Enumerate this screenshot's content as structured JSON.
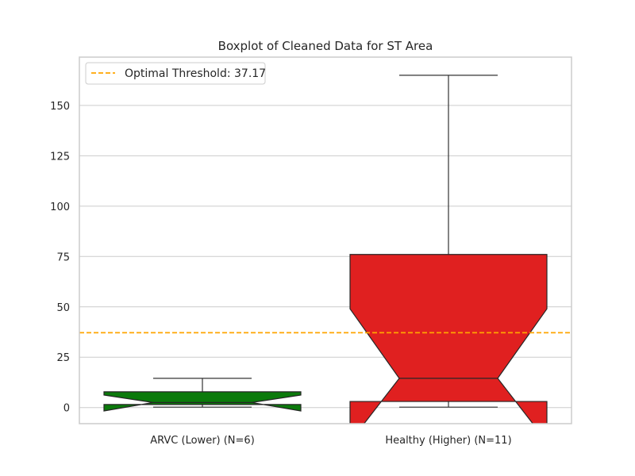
{
  "chart_data": {
    "type": "boxplot",
    "title": "Boxplot of Cleaned Data for ST Area",
    "xlabel": "",
    "ylabel": "",
    "ylim": [
      -8,
      174
    ],
    "yticks": [
      0,
      25,
      50,
      75,
      100,
      125,
      150
    ],
    "grid": true,
    "notched": true,
    "categories": [
      "ARVC (Lower) (N=6)",
      "Healthy (Higher) (N=11)"
    ],
    "boxes": [
      {
        "category": "ARVC (Lower) (N=6)",
        "color": "#0b7a0b",
        "whisker_low": 0.2,
        "q1": 1.5,
        "notch_low": -1.7,
        "median": 2.5,
        "notch_high": 6.2,
        "q3": 7.8,
        "whisker_high": 14.5
      },
      {
        "category": "Healthy (Higher) (N=11)",
        "color": "#e02020",
        "whisker_low": 0.2,
        "q1": 3.0,
        "notch_low": -17.0,
        "median": 14.5,
        "notch_high": 49.0,
        "q3": 76.0,
        "whisker_high": 165.0
      }
    ],
    "threshold": {
      "label": "Optimal Threshold: 37.17",
      "value": 37.17,
      "color": "#ffa500"
    },
    "legend_position": "top-left"
  }
}
